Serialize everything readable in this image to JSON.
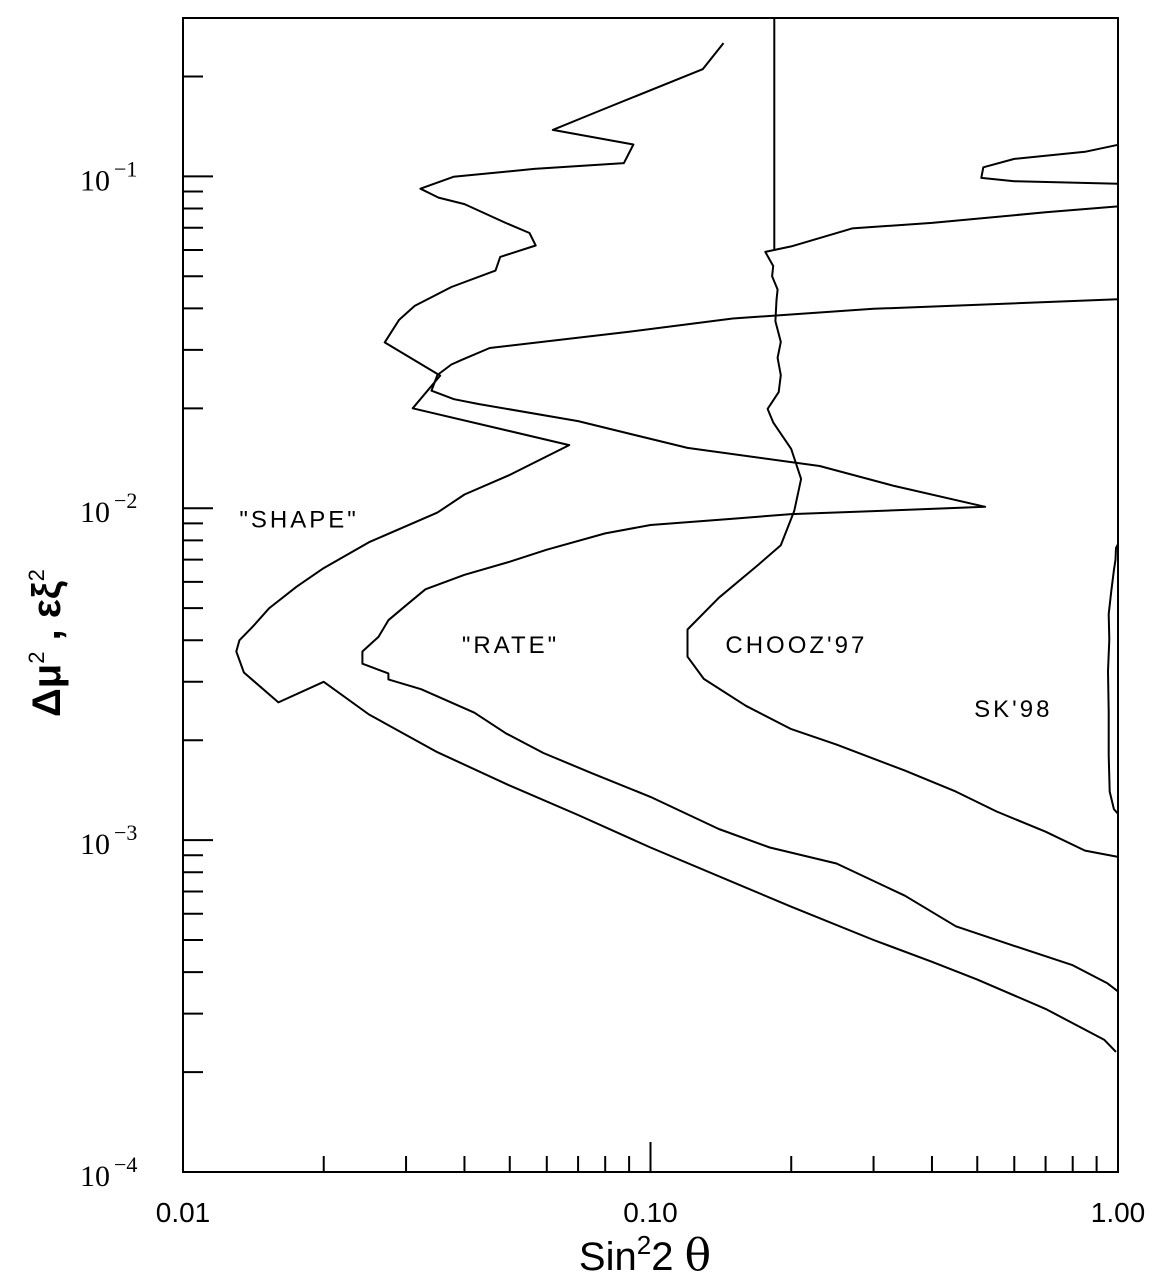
{
  "chart_data": {
    "type": "line",
    "xscale": "log",
    "yscale": "log",
    "xlim": [
      0.01,
      1.0
    ],
    "ylim": [
      0.0001,
      0.3
    ],
    "xlabel": "Sin²2 θ",
    "ylabel": "Δμ², εξ²",
    "xlabel_parts": {
      "base": "Sin",
      "sup": "2",
      "rest": "2 ",
      "theta": "θ"
    },
    "ylabel_parts": {
      "delta_mu": "Δμ",
      "sup1": "2",
      "sep": " , ",
      "eps_xi": "εξ",
      "sup2": "2"
    },
    "x_ticks": [
      {
        "value": 0.01,
        "label": "0.01"
      },
      {
        "value": 0.1,
        "label": "0.10"
      },
      {
        "value": 1.0,
        "label": "1.00"
      }
    ],
    "y_ticks": [
      {
        "value": 0.1,
        "base": "10",
        "exp": "−1"
      },
      {
        "value": 0.01,
        "base": "10",
        "exp": "−2"
      },
      {
        "value": 0.001,
        "base": "10",
        "exp": "−3"
      },
      {
        "value": 0.0001,
        "base": "10",
        "exp": "−4"
      }
    ],
    "grid": false,
    "annotations": [
      {
        "text": "\"SHAPE\"",
        "x": 0.0132,
        "y": 0.0093
      },
      {
        "text": "\"RATE\"",
        "x": 0.0395,
        "y": 0.0039
      },
      {
        "text": "CHOOZ'97",
        "x": 0.1446,
        "y": 0.0039
      },
      {
        "text": "SK'98",
        "x": 0.4924,
        "y": 0.0025
      }
    ],
    "series": [
      {
        "id": "shape",
        "points": [
          [
            0.99,
            0.00023
          ],
          [
            0.935,
            0.00025
          ],
          [
            0.7,
            0.00031
          ],
          [
            0.5,
            0.00038
          ],
          [
            0.4,
            0.00043
          ],
          [
            0.3,
            0.0005
          ],
          [
            0.2,
            0.00063
          ],
          [
            0.1,
            0.00095
          ],
          [
            0.07,
            0.00119
          ],
          [
            0.05,
            0.00146
          ],
          [
            0.035,
            0.00184
          ],
          [
            0.025,
            0.00239
          ],
          [
            0.02,
            0.003
          ],
          [
            0.016,
            0.0026
          ],
          [
            0.0135,
            0.0032
          ],
          [
            0.013,
            0.0037
          ],
          [
            0.0132,
            0.004
          ],
          [
            0.0141,
            0.0044
          ],
          [
            0.0153,
            0.005
          ],
          [
            0.0175,
            0.0058
          ],
          [
            0.02,
            0.0066
          ],
          [
            0.025,
            0.0079
          ],
          [
            0.035,
            0.0097
          ],
          [
            0.04,
            0.011
          ],
          [
            0.05,
            0.0126
          ],
          [
            0.067,
            0.0155
          ],
          [
            0.031,
            0.02
          ],
          [
            0.0355,
            0.0251
          ],
          [
            0.027,
            0.0316
          ],
          [
            0.029,
            0.037
          ],
          [
            0.0313,
            0.0407
          ],
          [
            0.0375,
            0.0464
          ],
          [
            0.0466,
            0.052
          ],
          [
            0.0477,
            0.0572
          ],
          [
            0.0568,
            0.0619
          ],
          [
            0.0551,
            0.0675
          ],
          [
            0.0488,
            0.0726
          ],
          [
            0.04,
            0.0825
          ],
          [
            0.0352,
            0.0863
          ],
          [
            0.0322,
            0.0918
          ],
          [
            0.0379,
            0.0997
          ],
          [
            0.0564,
            0.1053
          ],
          [
            0.0877,
            0.1096
          ],
          [
            0.0919,
            0.1247
          ],
          [
            0.0618,
            0.138
          ],
          [
            0.0767,
            0.1563
          ],
          [
            0.1293,
            0.2103
          ],
          [
            0.1433,
            0.252
          ]
        ]
      },
      {
        "id": "rate",
        "points": [
          [
            1.0,
            0.00035
          ],
          [
            0.95,
            0.00037
          ],
          [
            0.8,
            0.00042
          ],
          [
            0.6,
            0.00048
          ],
          [
            0.45,
            0.00055
          ],
          [
            0.35,
            0.00068
          ],
          [
            0.25,
            0.00085
          ],
          [
            0.18,
            0.00095
          ],
          [
            0.14,
            0.00108
          ],
          [
            0.1,
            0.00135
          ],
          [
            0.075,
            0.00159
          ],
          [
            0.059,
            0.00183
          ],
          [
            0.049,
            0.0021
          ],
          [
            0.042,
            0.00242
          ],
          [
            0.0323,
            0.00285
          ],
          [
            0.0275,
            0.00305
          ],
          [
            0.0275,
            0.00318
          ],
          [
            0.0242,
            0.0034
          ],
          [
            0.0242,
            0.0037
          ],
          [
            0.0262,
            0.0041
          ],
          [
            0.0275,
            0.0046
          ],
          [
            0.03,
            0.0051
          ],
          [
            0.033,
            0.0057
          ],
          [
            0.04,
            0.0063
          ],
          [
            0.05,
            0.0069
          ],
          [
            0.06,
            0.0075
          ],
          [
            0.08,
            0.0084
          ],
          [
            0.1,
            0.0089
          ],
          [
            0.15,
            0.0093
          ],
          [
            0.2,
            0.0096
          ],
          [
            0.3,
            0.0098
          ],
          [
            0.52,
            0.0101
          ],
          [
            0.33,
            0.0117
          ],
          [
            0.23,
            0.0134
          ],
          [
            0.12,
            0.0152
          ],
          [
            0.07,
            0.0183
          ],
          [
            0.043,
            0.0206
          ],
          [
            0.038,
            0.0213
          ],
          [
            0.034,
            0.0226
          ],
          [
            0.035,
            0.0252
          ],
          [
            0.0375,
            0.0271
          ],
          [
            0.0395,
            0.028
          ],
          [
            0.0453,
            0.0304
          ],
          [
            0.09,
            0.034
          ],
          [
            0.15,
            0.0373
          ],
          [
            0.3,
            0.0399
          ],
          [
            1.0,
            0.0426
          ]
        ]
      },
      {
        "id": "chooz97",
        "points": [
          [
            1.0,
            0.00089
          ],
          [
            0.85,
            0.00093
          ],
          [
            0.7,
            0.00106
          ],
          [
            0.55,
            0.00122
          ],
          [
            0.45,
            0.0014
          ],
          [
            0.35,
            0.00162
          ],
          [
            0.25,
            0.00194
          ],
          [
            0.2,
            0.00216
          ],
          [
            0.16,
            0.00254
          ],
          [
            0.13,
            0.00306
          ],
          [
            0.12,
            0.00357
          ],
          [
            0.12,
            0.00431
          ],
          [
            0.14,
            0.00537
          ],
          [
            0.17,
            0.00675
          ],
          [
            0.19,
            0.00774
          ],
          [
            0.203,
            0.00983
          ],
          [
            0.21,
            0.01226
          ],
          [
            0.2,
            0.01509
          ],
          [
            0.183,
            0.01814
          ],
          [
            0.178,
            0.01992
          ],
          [
            0.188,
            0.02239
          ],
          [
            0.19,
            0.02516
          ],
          [
            0.187,
            0.0284
          ],
          [
            0.19,
            0.0317
          ],
          [
            0.185,
            0.0366
          ],
          [
            0.186,
            0.0424
          ],
          [
            0.187,
            0.0456
          ],
          [
            0.182,
            0.05
          ],
          [
            0.183,
            0.0537
          ],
          [
            0.176,
            0.0592
          ],
          [
            0.2,
            0.0615
          ],
          [
            0.27,
            0.0697
          ],
          [
            0.4,
            0.0724
          ],
          [
            0.7,
            0.0779
          ],
          [
            1.0,
            0.0812
          ]
        ]
      },
      {
        "id": "chooz97-vertical",
        "points": [
          [
            0.184,
            0.0597
          ],
          [
            0.184,
            0.2992
          ]
        ]
      },
      {
        "id": "chooz97-upper",
        "points": [
          [
            1.0,
            0.1245
          ],
          [
            0.85,
            0.1186
          ],
          [
            0.6,
            0.1129
          ],
          [
            0.515,
            0.1065
          ],
          [
            0.51,
            0.0989
          ],
          [
            0.6,
            0.0967
          ],
          [
            1.0,
            0.095
          ]
        ]
      },
      {
        "id": "sk98",
        "points": [
          [
            1.0,
            0.0012
          ],
          [
            0.98,
            0.00124
          ],
          [
            0.96,
            0.0014
          ],
          [
            0.955,
            0.0018
          ],
          [
            0.955,
            0.00243
          ],
          [
            0.952,
            0.00323
          ],
          [
            0.958,
            0.00402
          ],
          [
            0.955,
            0.0048
          ],
          [
            0.967,
            0.0056
          ],
          [
            0.98,
            0.0065
          ],
          [
            0.988,
            0.007
          ],
          [
            0.99,
            0.00759
          ],
          [
            1.0,
            0.00779
          ]
        ]
      },
      {
        "id": "sk98-upper",
        "points": [
          [
            1.0,
            0.1245
          ],
          [
            1.0,
            0.1276
          ]
        ]
      }
    ]
  }
}
